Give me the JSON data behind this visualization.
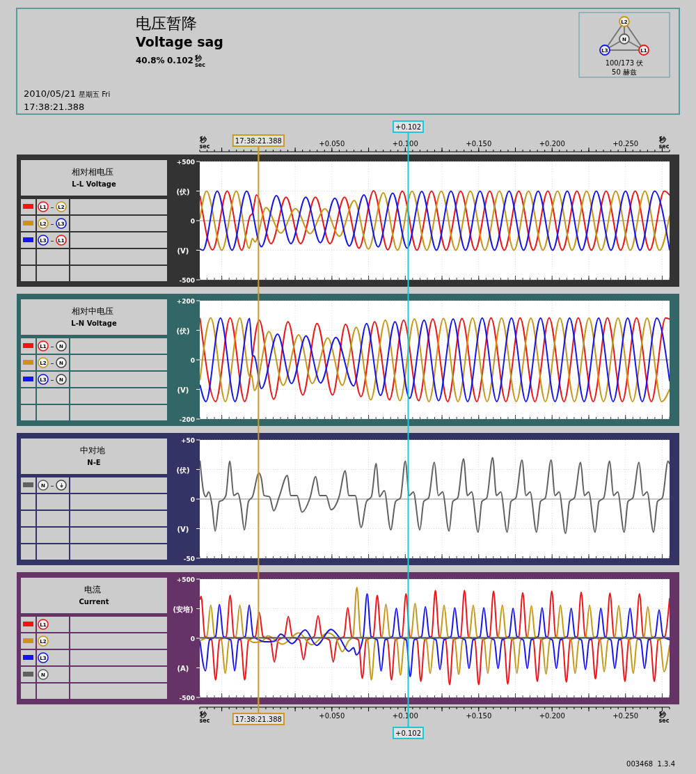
{
  "chart_data": [
    {
      "type": "other",
      "title": "电压暂降",
      "subtitle": "Voltage sag",
      "annotations": [
        "40.8%",
        "0.102 秒 sec",
        "2010/05/21 星期五 Fri",
        "17:38:21.388",
        "100/173 伏",
        "50 赫兹"
      ]
    },
    {
      "type": "line",
      "legend_title": "相对相电压\nL-L Voltage",
      "ylabel": "(伏)\n(V)",
      "annotations": [
        {
          "text": "17:38:21.388",
          "x": 0,
          "y": 500
        }
      ],
      "xlim": [
        -0.04,
        0.28
      ],
      "xticks": [
        -0.025,
        0,
        0.025,
        0.05,
        0.075,
        0.1,
        0.125,
        0.15,
        0.175,
        0.2,
        0.225,
        0.25,
        0.275
      ],
      "x2lim": [
        -0.04,
        0.28
      ],
      "x2label": "秒 sec",
      "x2ticks": [
        {
          "value": -0.025,
          "label": null
        },
        {
          "value": 0,
          "label": null
        },
        {
          "value": 0.025,
          "label": null
        },
        {
          "value": 0.05,
          "label": "+0.050"
        },
        {
          "value": 0.075,
          "label": null
        },
        {
          "value": 0.1,
          "label": "+0.100"
        },
        {
          "value": 0.125,
          "label": null
        },
        {
          "value": 0.15,
          "label": "+0.150"
        },
        {
          "value": 0.175,
          "label": null
        },
        {
          "value": 0.2,
          "label": "+0.200"
        },
        {
          "value": 0.225,
          "label": null
        },
        {
          "value": 0.25,
          "label": "+0.250"
        },
        {
          "value": 0.275,
          "label": null
        }
      ],
      "ylim": [
        -500,
        500
      ],
      "yticks": [
        {
          "value": 500,
          "label": "+500"
        },
        {
          "value": 250,
          "label": null
        },
        0,
        {
          "value": -250,
          "label": null
        },
        -500
      ],
      "tick_labels": "y",
      "grid": true,
      "legend": "left",
      "line_style": "solid",
      "ref_lines": [
        {
          "axis": "x",
          "value": 0,
          "color": "#c89b28"
        },
        {
          "axis": "x",
          "value": 0.102,
          "label": "+0.102",
          "color": "#1ec8d2"
        }
      ],
      "series": [
        {
          "name": "L1 – L2",
          "color": "#f01414",
          "x": [
            -0.0398,
            -0.0312,
            -0.0213,
            -0.0114,
            -0.0057,
            -0.0041,
            -0.0015,
            0.0086,
            0.0188,
            0.0287,
            0.0388,
            0.0487,
            0.0586,
            0.0685,
            0.0784,
            0.0881,
            0.098,
            0.1079,
            0.1179,
            0.1278,
            0.1377,
            0.1476,
            0.1575,
            0.1674,
            0.1773,
            0.1872,
            0.1971,
            0.207,
            0.2169,
            0.2268,
            0.2368,
            0.2467,
            0.2566,
            0.2665,
            0.2764,
            0.28
          ],
          "values": [
            206,
            -247,
            250,
            -250,
            40,
            60,
            217,
            -195,
            198,
            -195,
            198,
            -195,
            198,
            -233,
            253,
            -247,
            250,
            -250,
            250,
            -250,
            250,
            -250,
            250,
            -250,
            250,
            -250,
            250,
            -250,
            250,
            -250,
            250,
            -250,
            250,
            -250,
            250,
            217
          ]
        },
        {
          "name": "L2 – L3",
          "color": "#c89614",
          "x": [
            -0.0398,
            -0.0354,
            -0.025,
            -0.0151,
            -0.0063,
            -0.0041,
            -0.0024,
            0.0051,
            0.0152,
            0.0252,
            0.0351,
            0.0452,
            0.0551,
            0.0652,
            0.0749,
            0.085,
            0.0947,
            0.1046,
            0.1146,
            0.1245,
            0.1344,
            0.1443,
            0.1542,
            0.1641,
            0.174,
            0.1839,
            0.1938,
            0.2037,
            0.2136,
            0.2235,
            0.2334,
            0.2434,
            0.2533,
            0.2632,
            0.2731,
            0.28
          ],
          "values": [
            20,
            250,
            -250,
            250,
            -235,
            -150,
            -180,
            110,
            -105,
            102,
            -110,
            100,
            -132,
            170,
            -240,
            235,
            -250,
            250,
            -250,
            250,
            -250,
            250,
            -250,
            250,
            -250,
            250,
            -250,
            250,
            -250,
            250,
            -250,
            250,
            -250,
            250,
            -250,
            40
          ]
        },
        {
          "name": "L3 – L1",
          "color": "#1414f0",
          "x": [
            -0.0398,
            -0.0378,
            -0.0281,
            -0.018,
            -0.0081,
            0.002,
            0.0122,
            0.0221,
            0.0322,
            0.0421,
            0.052,
            0.0619,
            0.0718,
            0.0815,
            0.0914,
            0.1013,
            0.1112,
            0.1212,
            0.1311,
            0.141,
            0.1509,
            0.1608,
            0.1707,
            0.1806,
            0.1905,
            0.2004,
            0.2103,
            0.2202,
            0.2301,
            0.2401,
            0.25,
            0.2599,
            0.2698,
            0.28
          ],
          "values": [
            -240,
            -250,
            250,
            -250,
            250,
            -220,
            212,
            -195,
            198,
            -187,
            190,
            -214,
            217,
            -222,
            233,
            -233,
            247,
            -250,
            250,
            -250,
            250,
            -250,
            250,
            -250,
            250,
            -250,
            250,
            -250,
            250,
            -250,
            250,
            -250,
            250,
            -245
          ]
        }
      ]
    },
    {
      "type": "line",
      "legend_title": "相对中电压\nL-N Voltage",
      "ylabel": "(伏)\n(V)",
      "xlim": [
        -0.04,
        0.28
      ],
      "xticks": [
        -0.025,
        0,
        0.025,
        0.05,
        0.075,
        0.1,
        0.125,
        0.15,
        0.175,
        0.2,
        0.225,
        0.25,
        0.275
      ],
      "ylim": [
        -200,
        200
      ],
      "yticks": [
        {
          "value": 200,
          "label": "+200"
        },
        {
          "value": 100,
          "label": null
        },
        0,
        {
          "value": -100,
          "label": null
        },
        -200
      ],
      "tick_labels": "y",
      "grid": true,
      "legend": "left",
      "line_style": "solid",
      "ref_lines": [
        {
          "axis": "x",
          "value": 0,
          "color": "#c89b28"
        },
        {
          "axis": "x",
          "value": 0.102,
          "color": "#1ec8d2"
        }
      ],
      "series": [
        {
          "name": "L1 – N",
          "color": "#f01414",
          "x": [
            -0.0398,
            -0.0292,
            -0.0193,
            -0.0094,
            0.0005,
            0.0104,
            0.0201,
            0.0302,
            0.0399,
            0.0505,
            0.0593,
            0.0699,
            0.0791,
            0.0892,
            0.0989,
            0.1091,
            0.1187,
            0.1289,
            0.1386,
            0.1487,
            0.1584,
            0.1685,
            0.1782,
            0.1883,
            0.198,
            0.2081,
            0.2178,
            0.228,
            0.2377,
            0.2478,
            0.2575,
            0.2676,
            0.2773,
            0.28
          ],
          "values": [
            140,
            -141,
            142,
            -141,
            134,
            -133,
            129,
            -119,
            123,
            -119,
            120,
            -124,
            129,
            -135,
            134,
            -138,
            138,
            -141,
            140,
            -141,
            142,
            -141,
            142,
            -141,
            142,
            -141,
            142,
            -141,
            142,
            -141,
            142,
            -141,
            142,
            138
          ]
        },
        {
          "name": "L2 – N",
          "color": "#c89614",
          "x": [
            -0.0398,
            -0.0325,
            -0.0226,
            -0.0127,
            -0.0057,
            -0.0048,
            -0.0028,
            0.0071,
            0.0168,
            0.0274,
            0.0366,
            0.0472,
            0.0571,
            0.0666,
            0.0765,
            0.0864,
            0.0963,
            0.1062,
            0.1161,
            0.126,
            0.1359,
            0.1458,
            0.1557,
            0.1656,
            0.1756,
            0.1855,
            0.1954,
            0.2053,
            0.2152,
            0.2251,
            0.235,
            0.2449,
            0.2548,
            0.2647,
            0.2746,
            0.28
          ],
          "values": [
            -67,
            142,
            -141,
            142,
            -60,
            -50,
            -104,
            96,
            -86,
            85,
            -80,
            74,
            -86,
            110,
            -135,
            134,
            -138,
            138,
            -141,
            140,
            -141,
            141,
            -141,
            141,
            -141,
            141,
            -141,
            141,
            -141,
            141,
            -141,
            141,
            -141,
            141,
            -141,
            -100
          ]
        },
        {
          "name": "L3 – N",
          "color": "#1414f0",
          "x": [
            -0.0398,
            -0.0358,
            -0.0259,
            -0.016,
            -0.0061,
            -0.0041,
            -0.0028,
            0.002,
            0.013,
            0.0225,
            0.0324,
            0.0423,
            0.0527,
            0.0648,
            0.0736,
            0.0831,
            0.093,
            0.1029,
            0.1128,
            0.1227,
            0.1326,
            0.1425,
            0.1524,
            0.1623,
            0.1723,
            0.1822,
            0.1921,
            0.202,
            0.2119,
            0.2218,
            0.2317,
            0.2416,
            0.2515,
            0.2614,
            0.2713,
            0.28
          ],
          "values": [
            -86,
            -141,
            141,
            -141,
            140,
            15,
            12,
            -97,
            87,
            -80,
            81,
            -78,
            76,
            -88,
            123,
            -120,
            129,
            -130,
            134,
            -138,
            138,
            -141,
            141,
            -141,
            141,
            -141,
            141,
            -141,
            141,
            -141,
            141,
            -141,
            141,
            -141,
            141,
            -70
          ]
        }
      ]
    },
    {
      "type": "line",
      "legend_title": "中对地\nN-E",
      "ylabel": "(伏)\n(V)",
      "xlim": [
        -0.04,
        0.28
      ],
      "xticks": [
        -0.025,
        0,
        0.025,
        0.05,
        0.075,
        0.1,
        0.125,
        0.15,
        0.175,
        0.2,
        0.225,
        0.25,
        0.275
      ],
      "ylim": [
        -50,
        50
      ],
      "yticks": [
        {
          "value": 50,
          "label": "+50"
        },
        {
          "value": 25,
          "label": null
        },
        0,
        {
          "value": -25,
          "label": null
        },
        -50
      ],
      "tick_labels": "y",
      "grid": true,
      "legend": "left",
      "line_style": "solid",
      "ref_lines": [
        {
          "axis": "x",
          "value": 0,
          "color": "#c89b28"
        },
        {
          "axis": "x",
          "value": 0.102,
          "color": "#1ec8d2"
        }
      ],
      "series": [
        {
          "name": "N – ⏚",
          "color": "#606060",
          "x": [
            -0.0398,
            -0.0372,
            -0.0358,
            -0.0339,
            -0.0317,
            -0.0295,
            -0.0266,
            -0.0244,
            -0.0222,
            -0.0195,
            -0.0169,
            -0.014,
            -0.0121,
            -0.0096,
            -0.0068,
            -0.0041,
            0.0003,
            0.002,
            0.0038,
            0.0075,
            0.0104,
            0.0141,
            0.0197,
            0.0219,
            0.0263,
            0.0296,
            0.0351,
            0.039,
            0.0417,
            0.0461,
            0.0494,
            0.0549,
            0.0591,
            0.0615,
            0.0659,
            0.0699,
            0.0736,
            0.0769,
            0.0802,
            0.0824,
            0.0857,
            0.0901,
            0.0934,
            0.0967,
            0.1,
            0.1027,
            0.1055,
            0.1099,
            0.1126,
            0.1159,
            0.1198,
            0.1225,
            0.1254,
            0.1298,
            0.1324,
            0.1357,
            0.1397,
            0.1423,
            0.1452,
            0.1496,
            0.1522,
            0.1555,
            0.1595,
            0.1621,
            0.165,
            0.1694,
            0.172,
            0.1753,
            0.1795,
            0.1822,
            0.185,
            0.1894,
            0.1921,
            0.1954,
            0.1993,
            0.202,
            0.2048,
            0.2092,
            0.2119,
            0.2152,
            0.2194,
            0.222,
            0.2249,
            0.2293,
            0.2319,
            0.2352,
            0.2392,
            0.2418,
            0.2447,
            0.2491,
            0.2517,
            0.255,
            0.2592,
            0.2619,
            0.2647,
            0.2691,
            0.2718,
            0.2751,
            0.279,
            0.2799
          ],
          "values": [
            32,
            5,
            2,
            6,
            -5,
            -27,
            -2,
            -1,
            3,
            32,
            3,
            5,
            -4,
            -26,
            -2,
            2,
            22,
            17,
            3,
            2,
            -10,
            2,
            20,
            3,
            3,
            -11,
            1,
            19,
            3,
            3,
            -9,
            2,
            24,
            3,
            3,
            -24,
            -2,
            2,
            30,
            2,
            7,
            -26,
            -2,
            1,
            32,
            3,
            6,
            -26,
            -2,
            1,
            31,
            3,
            6,
            -27,
            -2,
            1,
            34,
            3,
            6,
            -28,
            -2,
            1,
            35,
            3,
            6,
            -28,
            -2,
            1,
            33,
            3,
            6,
            -28,
            -2,
            1,
            33,
            3,
            6,
            -29,
            -2,
            1,
            31,
            3,
            6,
            -28,
            -2,
            1,
            32,
            3,
            6,
            -28,
            -2,
            1,
            31,
            3,
            6,
            -28,
            -2,
            1,
            32,
            30
          ]
        }
      ]
    },
    {
      "type": "line",
      "legend_title": "电流\nCurrent",
      "ylabel": "(安培)\n(A)",
      "annotations": [
        "003468  1.3.4",
        {
          "text": "17:38:21.388",
          "x": 0,
          "y": -500
        }
      ],
      "xlim": [
        -0.04,
        0.28
      ],
      "xlabel": "秒 sec",
      "xticks": [
        {
          "value": -0.025,
          "label": null
        },
        {
          "value": 0,
          "label": null
        },
        {
          "value": 0.025,
          "label": null
        },
        {
          "value": 0.05,
          "label": "+0.050"
        },
        {
          "value": 0.075,
          "label": null
        },
        {
          "value": 0.1,
          "label": "+0.100"
        },
        {
          "value": 0.125,
          "label": null
        },
        {
          "value": 0.15,
          "label": "+0.150"
        },
        {
          "value": 0.175,
          "label": null
        },
        {
          "value": 0.2,
          "label": "+0.200"
        },
        {
          "value": 0.225,
          "label": null
        },
        {
          "value": 0.25,
          "label": "+0.250"
        },
        {
          "value": 0.275,
          "label": null
        }
      ],
      "ylim": [
        -500,
        500
      ],
      "yticks": [
        {
          "value": 500,
          "label": "+500"
        },
        {
          "value": 250,
          "label": null
        },
        0,
        {
          "value": -250,
          "label": null
        },
        -500
      ],
      "grid": true,
      "legend": "left",
      "line_style": "solid",
      "ref_lines": [
        {
          "axis": "x",
          "value": 0,
          "color": "#c89b28"
        },
        {
          "axis": "x",
          "value": 0.102,
          "label": "+0.102",
          "color": "#1ec8d2"
        }
      ],
      "series": [
        {
          "name": "L1",
          "color": "#f01414",
          "x": [
            -0.0398,
            -0.0391,
            -0.0365,
            -0.0319,
            -0.0292,
            -0.0266,
            -0.022,
            -0.0193,
            -0.0167,
            -0.0121,
            -0.0094,
            -0.0068,
            -0.0021,
            0.0005,
            0.0031,
            0.0082,
            0.0108,
            0.0135,
            0.0177,
            0.0203,
            0.023,
            0.028,
            0.0307,
            0.0333,
            0.0379,
            0.0406,
            0.0432,
            0.0483,
            0.0509,
            0.0536,
            0.0582,
            0.0608,
            0.0635,
            0.0681,
            0.0707,
            0.0734,
            0.0782,
            0.0809,
            0.0835,
            0.0879,
            0.0906,
            0.0932,
            0.0978,
            0.1005,
            0.1031,
            0.108,
            0.1106,
            0.1132,
            0.1179,
            0.1205,
            0.1231,
            0.1275,
            0.1302,
            0.1328,
            0.1377,
            0.1403,
            0.143,
            0.1474,
            0.15,
            0.1527,
            0.1575,
            0.1601,
            0.1628,
            0.1672,
            0.1698,
            0.1725,
            0.1773,
            0.18,
            0.1826,
            0.1872,
            0.1899,
            0.1925,
            0.1971,
            0.1998,
            0.2024,
            0.207,
            0.2097,
            0.2123,
            0.2172,
            0.2198,
            0.2225,
            0.2269,
            0.2295,
            0.2321,
            0.2368,
            0.2394,
            0.2421,
            0.2469,
            0.2496,
            0.2522,
            0.2568,
            0.2595,
            0.2621,
            0.2669,
            0.2696,
            0.2722,
            0.2768,
            0.28
          ],
          "values": [
            330,
            354,
            15,
            -15,
            -352,
            -15,
            15,
            363,
            15,
            -15,
            -352,
            -15,
            15,
            217,
            15,
            -15,
            -200,
            -15,
            15,
            184,
            15,
            -15,
            -181,
            -15,
            15,
            190,
            15,
            -15,
            -200,
            -15,
            15,
            258,
            15,
            -15,
            -338,
            -15,
            15,
            363,
            15,
            -15,
            -352,
            -15,
            15,
            376,
            15,
            -15,
            -365,
            -15,
            15,
            404,
            15,
            -15,
            -393,
            -15,
            15,
            404,
            15,
            -15,
            -393,
            -15,
            15,
            398,
            15,
            -15,
            -387,
            -15,
            15,
            385,
            15,
            -15,
            -365,
            -15,
            15,
            398,
            15,
            -15,
            -370,
            -15,
            15,
            390,
            15,
            -15,
            -343,
            -15,
            15,
            382,
            15,
            -15,
            -365,
            -15,
            15,
            376,
            15,
            -15,
            -365,
            -15,
            15,
            335
          ]
        },
        {
          "name": "L2",
          "color": "#c89614",
          "x": [
            -0.0398,
            -0.0352,
            -0.0325,
            -0.0299,
            -0.0253,
            -0.0226,
            -0.02,
            -0.0154,
            -0.0127,
            -0.0101,
            -0.0068,
            -0.0035,
            0.002,
            0.0064,
            0.0164,
            0.0274,
            0.0362,
            0.0472,
            0.0527,
            0.0571,
            0.0615,
            0.0644,
            0.067,
            0.0697,
            0.0743,
            0.0769,
            0.0796,
            0.0842,
            0.0868,
            0.0895,
            0.0941,
            0.0967,
            0.0994,
            0.104,
            0.1066,
            0.1093,
            0.1143,
            0.117,
            0.1196,
            0.1238,
            0.1264,
            0.1291,
            0.1337,
            0.1364,
            0.139,
            0.1436,
            0.1463,
            0.1489,
            0.1536,
            0.1562,
            0.1588,
            0.1634,
            0.1661,
            0.1687,
            0.1734,
            0.176,
            0.1786,
            0.1833,
            0.1859,
            0.1885,
            0.1932,
            0.1958,
            0.1985,
            0.2031,
            0.2057,
            0.2084,
            0.213,
            0.2156,
            0.2183,
            0.2229,
            0.2255,
            0.2282,
            0.2328,
            0.2355,
            0.2381,
            0.2427,
            0.2454,
            0.248,
            0.2526,
            0.2553,
            0.2579,
            0.2626,
            0.2652,
            0.2679,
            0.2735,
            0.2762,
            0.28
          ],
          "values": [
            -20,
            15,
            280,
            15,
            -15,
            -297,
            -15,
            15,
            280,
            15,
            -10,
            -35,
            -30,
            20,
            -50,
            45,
            -55,
            45,
            0,
            -113,
            -20,
            15,
            431,
            15,
            -15,
            -352,
            -15,
            15,
            288,
            15,
            -15,
            -310,
            -15,
            15,
            294,
            15,
            -15,
            -297,
            -15,
            15,
            280,
            15,
            -15,
            -305,
            -15,
            15,
            280,
            15,
            -15,
            -297,
            -15,
            15,
            280,
            15,
            -15,
            -297,
            -15,
            15,
            275,
            15,
            -15,
            -302,
            -15,
            15,
            280,
            15,
            -15,
            -297,
            -15,
            15,
            280,
            15,
            -15,
            -283,
            -15,
            15,
            275,
            15,
            -15,
            -297,
            -15,
            15,
            266,
            15,
            -15,
            -283,
            -60
          ]
        },
        {
          "name": "L3",
          "color": "#1414f0",
          "x": [
            -0.0398,
            -0.0361,
            -0.0334,
            -0.0292,
            -0.0266,
            -0.0239,
            -0.0189,
            -0.0162,
            -0.0136,
            -0.009,
            -0.0063,
            -0.0036,
            -0.0002,
            0.0042,
            0.0108,
            0.0152,
            0.0229,
            0.0318,
            0.0395,
            0.0494,
            0.0549,
            0.0615,
            0.0648,
            0.0666,
            0.0714,
            0.074,
            0.0767,
            0.0809,
            0.0835,
            0.0862,
            0.0912,
            0.0939,
            0.0965,
            0.1007,
            0.1033,
            0.106,
            0.1111,
            0.1137,
            0.1164,
            0.121,
            0.1236,
            0.1263,
            0.1311,
            0.1337,
            0.1364,
            0.1408,
            0.1434,
            0.1461,
            0.1509,
            0.1535,
            0.1562,
            0.1606,
            0.1632,
            0.1659,
            0.1707,
            0.1734,
            0.176,
            0.1804,
            0.1831,
            0.1857,
            0.1905,
            0.1932,
            0.1958,
            0.2002,
            0.2029,
            0.2055,
            0.2103,
            0.213,
            0.2156,
            0.22,
            0.2227,
            0.2253,
            0.2306,
            0.2332,
            0.2359,
            0.2401,
            0.2427,
            0.2454,
            0.2504,
            0.2531,
            0.2557,
            0.2603,
            0.263,
            0.2656,
            0.2702,
            0.2729,
            0.2755,
            0.28
          ],
          "values": [
            -30,
            -275,
            -15,
            15,
            286,
            15,
            -15,
            -275,
            -15,
            15,
            280,
            15,
            -10,
            -30,
            -25,
            35,
            -45,
            70,
            -60,
            75,
            10,
            -110,
            -80,
            -140,
            15,
            376,
            15,
            -15,
            -277,
            -15,
            15,
            253,
            15,
            -15,
            -324,
            -15,
            15,
            266,
            15,
            -15,
            -264,
            -15,
            15,
            258,
            15,
            -15,
            -255,
            -15,
            15,
            258,
            15,
            -15,
            -255,
            -15,
            15,
            253,
            15,
            -15,
            -255,
            -15,
            15,
            258,
            15,
            -15,
            -255,
            -15,
            15,
            253,
            15,
            -15,
            -264,
            -15,
            15,
            253,
            15,
            -15,
            -255,
            -15,
            15,
            253,
            15,
            -15,
            -255,
            -15,
            15,
            239,
            15,
            -10
          ]
        },
        {
          "name": "N",
          "color": "#606060",
          "x": [
            -0.04,
            -0.02,
            0,
            0.02,
            0.04,
            0.06,
            0.08,
            0.1,
            0.12,
            0.14,
            0.16,
            0.18,
            0.2,
            0.22,
            0.24,
            0.26,
            0.28
          ],
          "values": [
            5,
            5,
            5,
            5,
            5,
            5,
            5,
            5,
            5,
            5,
            5,
            5,
            5,
            5,
            5,
            5,
            5
          ]
        }
      ]
    }
  ]
}
